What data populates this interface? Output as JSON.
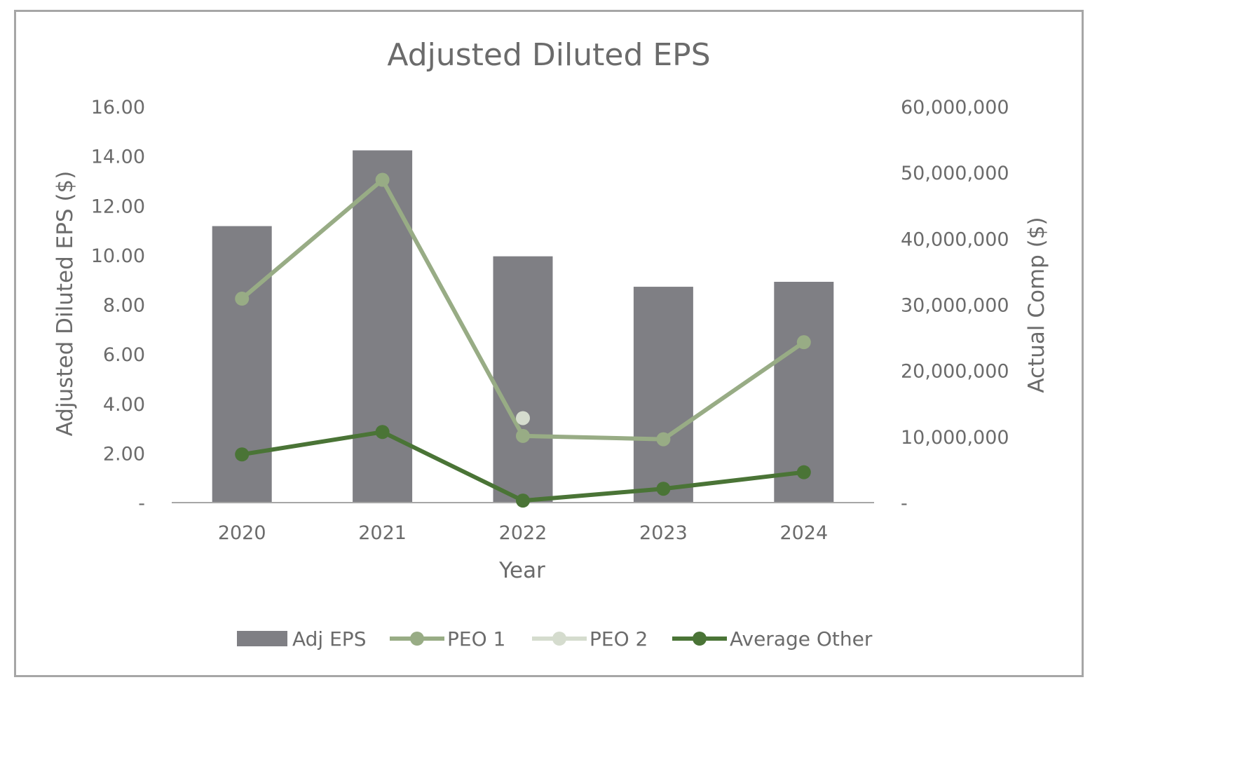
{
  "chart_data": {
    "type": "bar",
    "title": "Adjusted Diluted EPS",
    "xlabel": "Year",
    "ylabel": "Adjusted Diluted EPS ($)",
    "y2label": "Actual Comp ($)",
    "categories": [
      "2020",
      "2021",
      "2022",
      "2023",
      "2024"
    ],
    "ylim": [
      0,
      16
    ],
    "y2lim": [
      0,
      60000000
    ],
    "yticks": [
      "-",
      "2.00",
      "4.00",
      "6.00",
      "8.00",
      "10.00",
      "12.00",
      "14.00",
      "16.00"
    ],
    "y2ticks": [
      "-",
      "10,000,000",
      "20,000,000",
      "30,000,000",
      "40,000,000",
      "50,000,000",
      "60,000,000"
    ],
    "legend_position": "bottom",
    "series": [
      {
        "name": "Adj EPS",
        "type": "bar",
        "axis": "left",
        "color": "#7f7f84",
        "values": [
          11.17,
          14.23,
          9.95,
          8.72,
          8.92
        ]
      },
      {
        "name": "PEO 1",
        "type": "line",
        "axis": "right",
        "color": "#98ac85",
        "values": [
          30900000,
          48900000,
          10100000,
          9600000,
          24300000
        ]
      },
      {
        "name": "PEO 2",
        "type": "line",
        "axis": "right",
        "color": "#d5dcce",
        "values": [
          null,
          null,
          12800000,
          null,
          null
        ]
      },
      {
        "name": "Average Other",
        "type": "line",
        "axis": "right",
        "color": "#4a7436",
        "values": [
          7300000,
          10700000,
          300000,
          2100000,
          4600000
        ]
      }
    ]
  }
}
